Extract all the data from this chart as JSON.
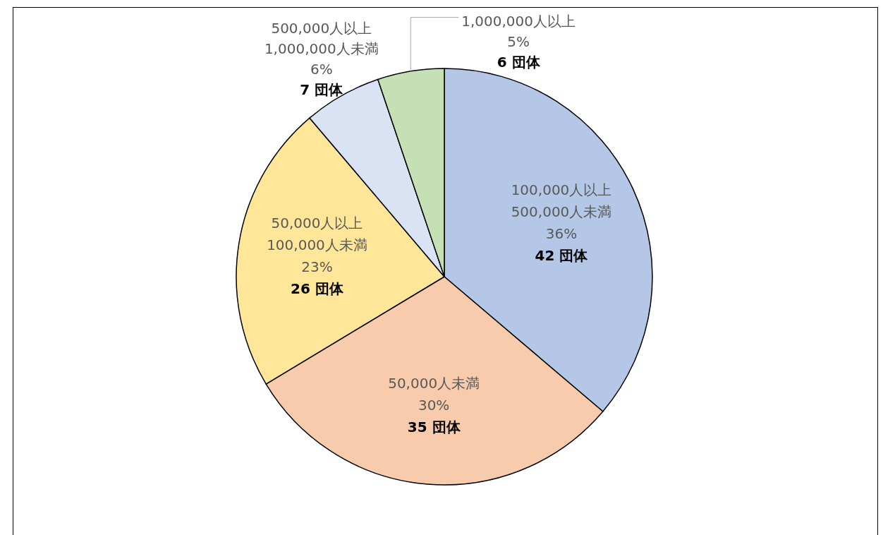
{
  "chart_data": {
    "type": "pie",
    "categories": [
      "100,000人以上\n500,000人未満\n36%",
      "50,000人未満\n30%",
      "50,000人以上\n100,000人未満\n23%",
      "500,000人以上\n1,000,000人未満\n6%",
      "1,000,000人以上\n5%"
    ],
    "values": [
      42,
      35,
      26,
      7,
      6
    ],
    "colors": [
      "#b4c7e7",
      "#f8cbad",
      "#ffe699",
      "#dae3f3",
      "#c5e0b4"
    ],
    "value_labels": [
      "42 団体",
      "35 団体",
      "26 団体",
      "7 団体",
      "6 団体"
    ]
  }
}
